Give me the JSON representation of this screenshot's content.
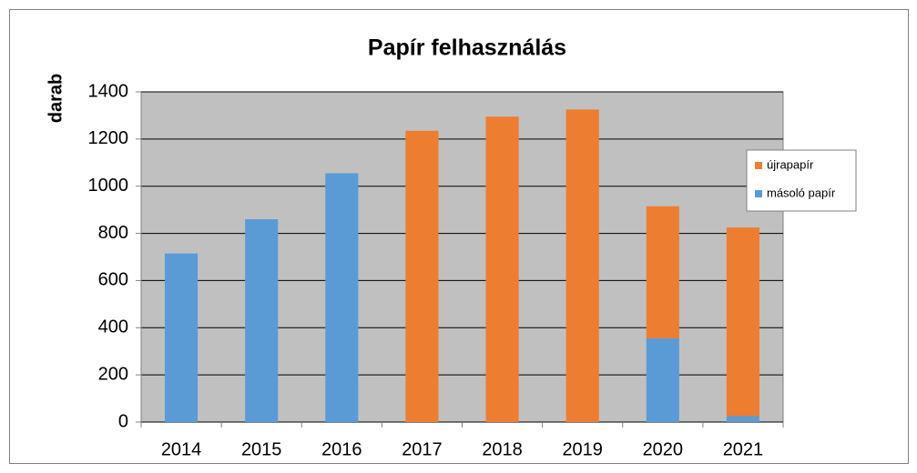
{
  "chart_data": {
    "type": "stacked_bar",
    "title": "Papír felhasználás",
    "y_label": "darab",
    "categories": [
      "2014",
      "2015",
      "2016",
      "2017",
      "2018",
      "2019",
      "2020",
      "2021"
    ],
    "series": [
      {
        "name": "másoló papír",
        "color": "#5b9bd5",
        "values": [
          715,
          860,
          1055,
          0,
          0,
          0,
          355,
          25
        ]
      },
      {
        "name": "újrapapír",
        "color": "#ed7d31",
        "values": [
          0,
          0,
          0,
          1235,
          1295,
          1325,
          560,
          800
        ]
      }
    ],
    "ylim": [
      0,
      1400
    ],
    "yticks": [
      0,
      200,
      400,
      600,
      800,
      1000,
      1200,
      1400
    ],
    "grid": true,
    "legend": "right",
    "plot_background": "#c0c0c0"
  }
}
